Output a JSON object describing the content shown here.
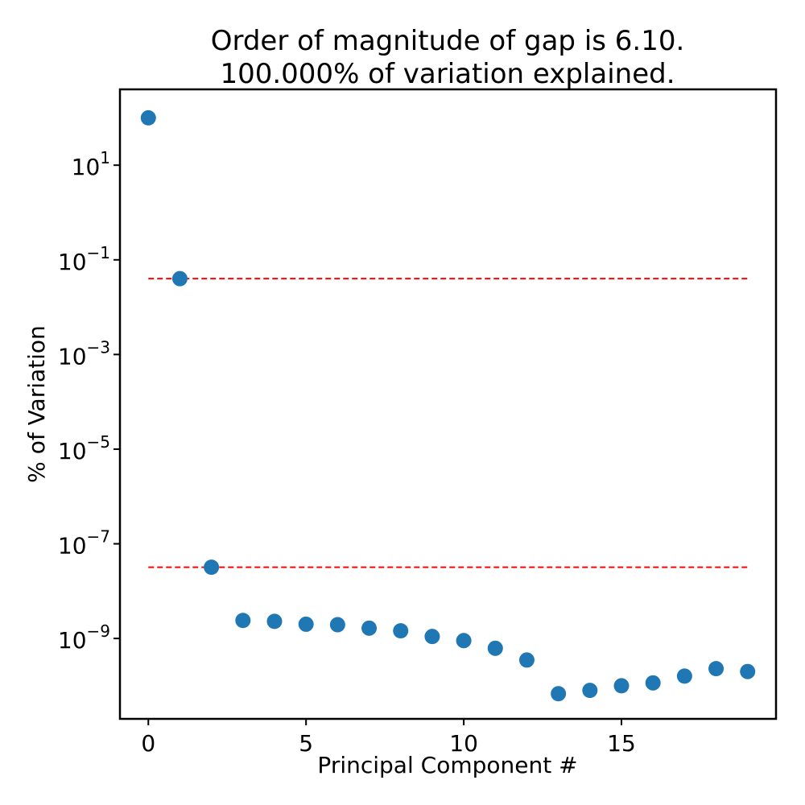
{
  "chart_data": {
    "type": "scatter",
    "title": "Order of magnitude of gap is 6.10.",
    "subtitle": "100.000% of variation explained.",
    "xlabel": "Principal Component #",
    "ylabel": "% of Variation",
    "yscale": "log",
    "xlim": [
      -0.9,
      19.9
    ],
    "ylim": [
      2e-11,
      400
    ],
    "xticks": [
      0,
      5,
      10,
      15
    ],
    "xtick_labels": [
      "0",
      "5",
      "10",
      "15"
    ],
    "yticks": [
      10,
      0.1,
      0.001,
      1e-05,
      1e-07,
      1e-09
    ],
    "ytick_labels": [
      {
        "base": "10",
        "exp": "1"
      },
      {
        "base": "10",
        "exp": "−1"
      },
      {
        "base": "10",
        "exp": "−3"
      },
      {
        "base": "10",
        "exp": "−5"
      },
      {
        "base": "10",
        "exp": "−7"
      },
      {
        "base": "10",
        "exp": "−9"
      }
    ],
    "grid": false,
    "legend": "none",
    "marker_color": "#1f77b4",
    "line_color": "#ff0000",
    "x": [
      0,
      1,
      2,
      3,
      4,
      5,
      6,
      7,
      8,
      9,
      10,
      11,
      12,
      13,
      14,
      15,
      16,
      17,
      18,
      19
    ],
    "y": [
      99.96,
      0.04,
      3.2e-08,
      2.4e-09,
      2.3e-09,
      2e-09,
      1.95e-09,
      1.65e-09,
      1.45e-09,
      1.1e-09,
      9e-10,
      6.2e-10,
      3.5e-10,
      6.8e-11,
      8e-11,
      1e-10,
      1.15e-10,
      1.6e-10,
      2.3e-10,
      2e-10
    ],
    "hlines": [
      {
        "y": 0.04,
        "xmin": 0,
        "xmax": 19,
        "style": "dashed"
      },
      {
        "y": 3.2e-08,
        "xmin": 0,
        "xmax": 19,
        "style": "dashed"
      }
    ]
  }
}
